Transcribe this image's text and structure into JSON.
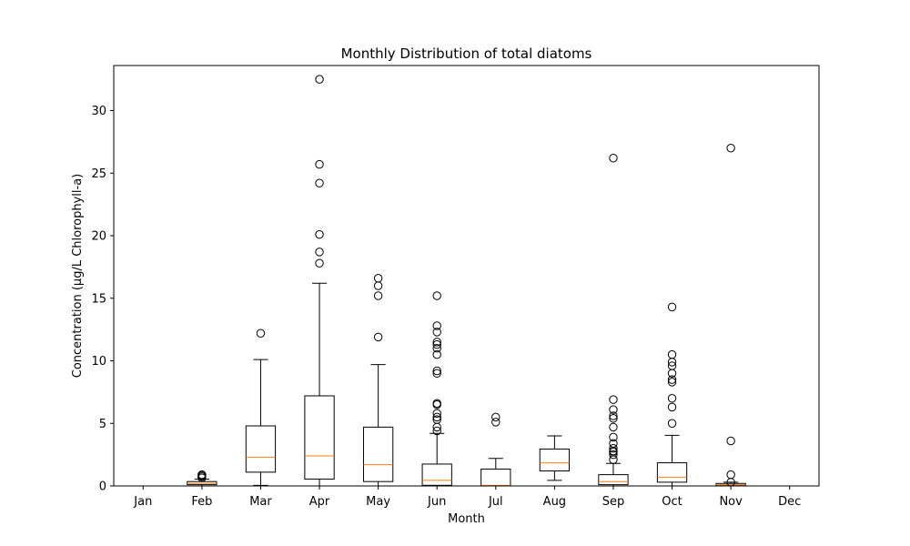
{
  "chart_data": {
    "type": "boxplot",
    "title": "Monthly Distribution of total diatoms",
    "xlabel": "Month",
    "ylabel": "Concentration (µg/L Chlorophyll-a)",
    "ylim": [
      0,
      33.6
    ],
    "yticks": [
      0,
      5,
      10,
      15,
      20,
      25,
      30
    ],
    "grid": false,
    "colors": {
      "box": "#000000",
      "median": "#ff7f0e",
      "background": "#ffffff"
    },
    "categories": [
      "Jan",
      "Feb",
      "Mar",
      "Apr",
      "May",
      "Jun",
      "Jul",
      "Aug",
      "Sep",
      "Oct",
      "Nov",
      "Dec"
    ],
    "boxes": [
      {
        "month": "Jan",
        "whislo": null,
        "q1": null,
        "med": null,
        "q3": null,
        "whishi": null,
        "fliers": []
      },
      {
        "month": "Feb",
        "whislo": 0.0,
        "q1": 0.1,
        "med": 0.2,
        "q3": 0.35,
        "whishi": 0.55,
        "fliers": [
          0.75,
          0.85,
          0.9,
          0.65
        ]
      },
      {
        "month": "Mar",
        "whislo": 0.05,
        "q1": 1.1,
        "med": 2.3,
        "q3": 4.8,
        "whishi": 10.1,
        "fliers": [
          12.2
        ]
      },
      {
        "month": "Apr",
        "whislo": 0.0,
        "q1": 0.55,
        "med": 2.4,
        "q3": 7.2,
        "whishi": 16.2,
        "fliers": [
          17.8,
          18.7,
          20.1,
          24.2,
          25.7,
          32.5
        ]
      },
      {
        "month": "May",
        "whislo": 0.0,
        "q1": 0.35,
        "med": 1.7,
        "q3": 4.7,
        "whishi": 9.7,
        "fliers": [
          11.9,
          15.2,
          16.0,
          16.6
        ]
      },
      {
        "month": "Jun",
        "whislo": 0.0,
        "q1": 0.05,
        "med": 0.45,
        "q3": 1.75,
        "whishi": 4.2,
        "fliers": [
          4.4,
          4.7,
          5.3,
          5.5,
          5.8,
          6.5,
          6.6,
          9.0,
          9.2,
          10.5,
          11.0,
          11.3,
          11.5,
          12.3,
          12.8,
          15.2
        ]
      },
      {
        "month": "Jul",
        "whislo": 0.0,
        "q1": 0.0,
        "med": 0.05,
        "q3": 1.35,
        "whishi": 2.2,
        "fliers": [
          5.1,
          5.5
        ]
      },
      {
        "month": "Aug",
        "whislo": 0.45,
        "q1": 1.2,
        "med": 1.85,
        "q3": 2.95,
        "whishi": 4.0,
        "fliers": []
      },
      {
        "month": "Sep",
        "whislo": 0.0,
        "q1": 0.1,
        "med": 0.35,
        "q3": 0.9,
        "whishi": 1.8,
        "fliers": [
          2.1,
          2.5,
          2.7,
          2.8,
          3.0,
          3.4,
          3.9,
          4.7,
          5.4,
          5.6,
          6.1,
          6.9,
          26.2
        ]
      },
      {
        "month": "Oct",
        "whislo": 0.0,
        "q1": 0.3,
        "med": 0.7,
        "q3": 1.85,
        "whishi": 4.05,
        "fliers": [
          5.0,
          6.3,
          7.0,
          8.3,
          8.5,
          9.0,
          9.6,
          9.9,
          10.5,
          14.3
        ]
      },
      {
        "month": "Nov",
        "whislo": 0.0,
        "q1": 0.02,
        "med": 0.1,
        "q3": 0.2,
        "whishi": 0.3,
        "fliers": [
          0.3,
          0.9,
          3.6,
          27.0
        ]
      },
      {
        "month": "Dec",
        "whislo": null,
        "q1": null,
        "med": null,
        "q3": null,
        "whishi": null,
        "fliers": []
      }
    ]
  }
}
